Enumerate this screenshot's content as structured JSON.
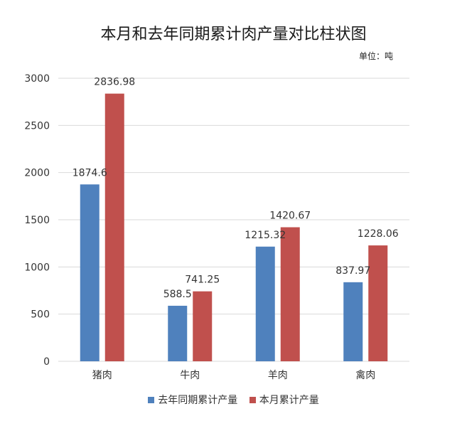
{
  "chart_data": {
    "type": "bar",
    "title": "本月和去年同期累计肉产量对比柱状图",
    "unit_label": "单位：吨",
    "categories": [
      "猪肉",
      "牛肉",
      "羊肉",
      "禽肉"
    ],
    "series": [
      {
        "name": "去年同期累计产量",
        "color": "#4f81bd",
        "values": [
          1874.6,
          588.5,
          1215.32,
          837.97
        ],
        "labels": [
          "1874.6",
          "588.5",
          "1215.32",
          "837.97"
        ]
      },
      {
        "name": "本月累计产量",
        "color": "#c0504d",
        "values": [
          2836.98,
          741.25,
          1420.67,
          1228.06
        ],
        "labels": [
          "2836.98",
          "741.25",
          "1420.67",
          "1228.06"
        ]
      }
    ],
    "yticks": [
      "0",
      "500",
      "1000",
      "1500",
      "2000",
      "2500",
      "3000"
    ],
    "ylim": [
      0,
      3000
    ],
    "grid": true,
    "legend_position": "bottom"
  }
}
